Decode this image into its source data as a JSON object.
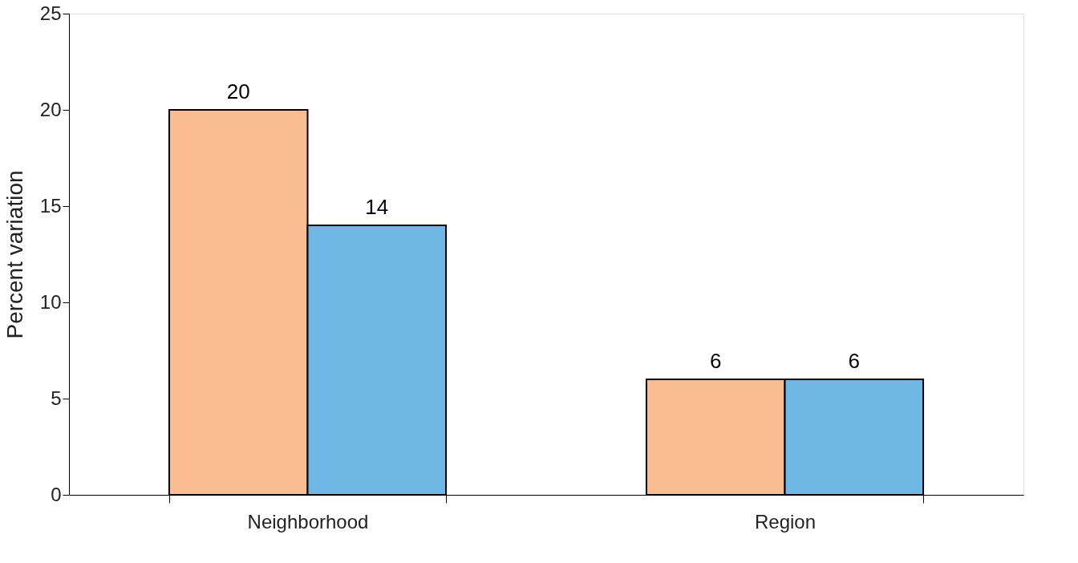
{
  "chart_data": {
    "type": "bar",
    "ylabel": "Percent variation",
    "categories": [
      "Neighborhood",
      "Region"
    ],
    "series": [
      {
        "color": "#f9bd91",
        "values": [
          20,
          6
        ]
      },
      {
        "color": "#6fb8e6",
        "values": [
          14,
          6
        ]
      }
    ],
    "ylim": [
      0,
      25
    ],
    "yticks": [
      0,
      5,
      10,
      15,
      20,
      25
    ],
    "grid": false,
    "legend": false,
    "data_labels": true
  }
}
